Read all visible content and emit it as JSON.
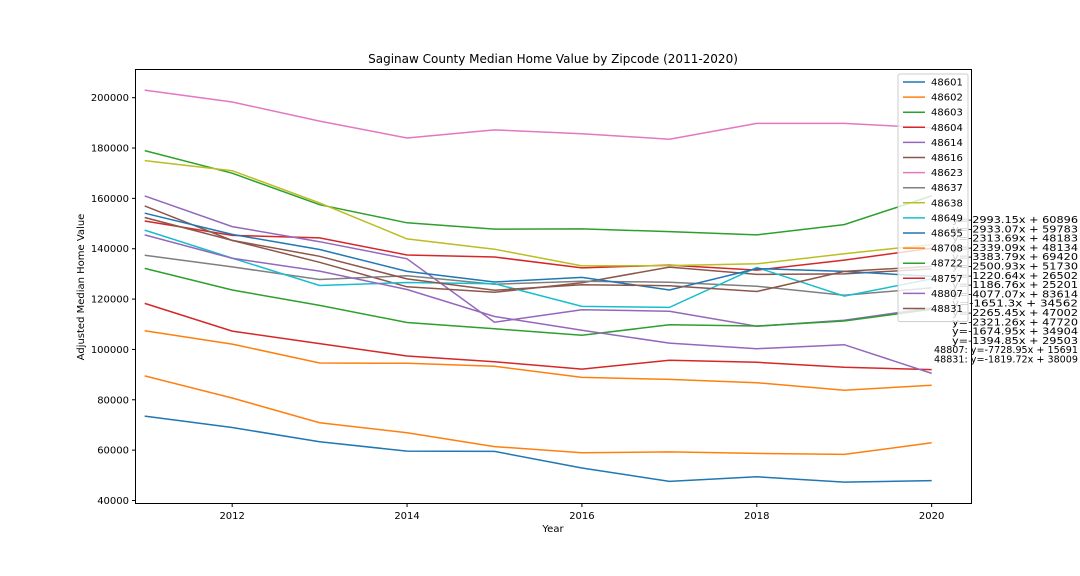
{
  "chart_data": {
    "type": "line",
    "title": "Saginaw County Median Home Value by Zipcode (2011-2020)",
    "xlabel": "Year",
    "ylabel": "Adjusted Median Home Value",
    "x": [
      2011,
      2012,
      2013,
      2014,
      2015,
      2016,
      2017,
      2018,
      2019,
      2020
    ],
    "xlim": [
      2010.9,
      2020.45
    ],
    "ylim": [
      39000,
      211000
    ],
    "xticks": [
      2012,
      2014,
      2016,
      2018,
      2020
    ],
    "yticks": [
      40000,
      60000,
      80000,
      100000,
      120000,
      140000,
      160000,
      180000,
      200000
    ],
    "grid": false,
    "legend_position": "upper right",
    "series": [
      {
        "name": "48601",
        "color": "#1f77b4",
        "values": [
          73500,
          69000,
          63300,
          59600,
          59500,
          52900,
          47600,
          49400,
          47300,
          47900
        ]
      },
      {
        "name": "48602",
        "color": "#ff7f0e",
        "values": [
          89500,
          80700,
          70900,
          66900,
          61400,
          59000,
          59300,
          58700,
          58300,
          62900
        ]
      },
      {
        "name": "48603",
        "color": "#2ca02c",
        "values": [
          179000,
          170000,
          157500,
          150300,
          147800,
          147900,
          146800,
          145500,
          149600,
          161000
        ]
      },
      {
        "name": "48604",
        "color": "#d62728",
        "values": [
          151000,
          145300,
          144300,
          137500,
          136700,
          132400,
          133500,
          131500,
          135500,
          140200
        ]
      },
      {
        "name": "48614",
        "color": "#9467bd",
        "values": [
          161000,
          148800,
          142800,
          136000,
          110800,
          115800,
          115200,
          109200,
          111600,
          116500
        ]
      },
      {
        "name": "48616",
        "color": "#8c564b",
        "values": [
          157000,
          143300,
          134600,
          124900,
          122700,
          126500,
          132700,
          129800,
          130000,
          132000
        ]
      },
      {
        "name": "48623",
        "color": "#e377c2",
        "values": [
          203000,
          198300,
          190700,
          184000,
          187200,
          185700,
          183500,
          189800,
          189800,
          188000
        ]
      },
      {
        "name": "48637",
        "color": "#7f7f7f",
        "values": [
          137400,
          132800,
          127800,
          129300,
          125900,
          127100,
          126700,
          125100,
          121500,
          124500
        ]
      },
      {
        "name": "48638",
        "color": "#bcbd22",
        "values": [
          175000,
          171000,
          158200,
          143900,
          139800,
          133200,
          133300,
          134000,
          138000,
          141700
        ]
      },
      {
        "name": "48649",
        "color": "#17becf",
        "values": [
          147400,
          136300,
          125400,
          126600,
          126100,
          117100,
          116700,
          132600,
          121200,
          128000
        ]
      },
      {
        "name": "48655",
        "color": "#1f77b4",
        "values": [
          154100,
          145700,
          139700,
          131000,
          126800,
          128600,
          123600,
          132100,
          131000,
          129000
        ]
      },
      {
        "name": "48708",
        "color": "#ff7f0e",
        "values": [
          107400,
          102100,
          94600,
          94500,
          93300,
          88900,
          88100,
          86800,
          83800,
          85800
        ]
      },
      {
        "name": "48722",
        "color": "#2ca02c",
        "values": [
          132200,
          123600,
          117500,
          110700,
          108200,
          105600,
          109800,
          109300,
          111300,
          116000
        ]
      },
      {
        "name": "48757",
        "color": "#d62728",
        "values": [
          118300,
          107300,
          102300,
          97400,
          95100,
          92200,
          95700,
          94900,
          92900,
          92000
        ]
      },
      {
        "name": "48807",
        "color": "#9467bd",
        "values": [
          145500,
          136200,
          131100,
          123800,
          113100,
          107600,
          102500,
          100300,
          101900,
          90500
        ]
      },
      {
        "name": "48831",
        "color": "#8c564b",
        "values": [
          152400,
          143300,
          137000,
          128000,
          123500,
          125700,
          125300,
          123000,
          131000,
          133000
        ]
      }
    ],
    "annotations": [
      "y=-2993.15x + 60896",
      "y=-2933.07x + 59783",
      "y=-2313.69x + 48183",
      "y=-2339.09x + 48134",
      "y=-3383.79x + 69420",
      "y=-2500.93x + 51730",
      "y=-1220.64x + 26502",
      "y=-1186.76x + 25201",
      "y=-4077.07x + 83614",
      "y=-1651.3x + 34562",
      "y=-2265.45x + 47002",
      "y=-2321.26x + 47720",
      "y=-1674.95x + 34904",
      "y=-1394.85x + 29503",
      "48807: y=-7728.95x + 15691",
      "48831: y=-1819.72x + 38009"
    ]
  }
}
